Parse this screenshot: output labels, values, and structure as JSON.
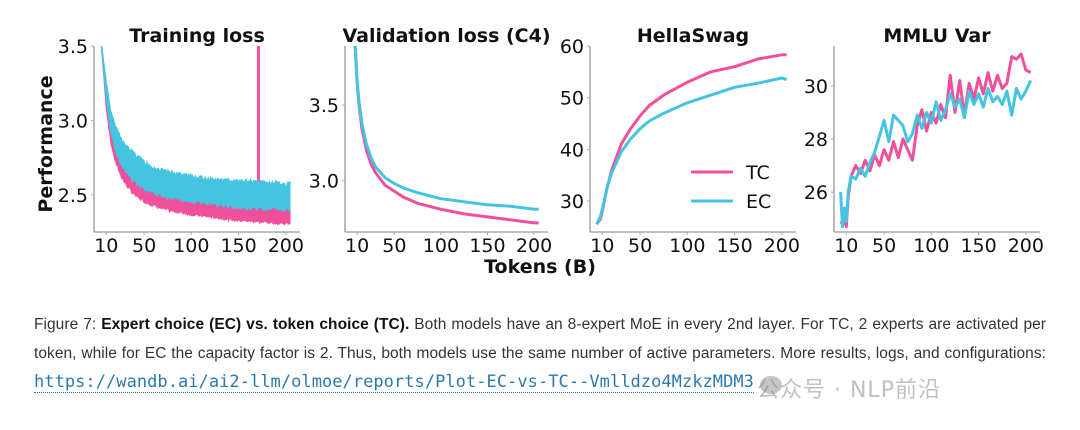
{
  "chart_data": [
    {
      "type": "area",
      "title": "Training loss",
      "xlabel": "",
      "ylabel": "Performance",
      "xlim": [
        -3,
        215
      ],
      "ylim": [
        2.25,
        3.5
      ],
      "xticks": [
        10,
        50,
        100,
        150,
        200
      ],
      "yticks": [
        2.5,
        3.0,
        3.5
      ],
      "ytick_labels": [
        "2.5",
        "3.0",
        "3.5"
      ],
      "grid": false,
      "note": "noisy bands: values are [low, high] envelope of per-step loss",
      "x": [
        5,
        10,
        15,
        20,
        25,
        30,
        40,
        50,
        60,
        75,
        100,
        125,
        150,
        175,
        200,
        205
      ],
      "series": [
        {
          "name": "TC",
          "color": "#f0509a",
          "low": [
            3.5,
            3.1,
            2.85,
            2.72,
            2.64,
            2.58,
            2.5,
            2.46,
            2.43,
            2.4,
            2.37,
            2.35,
            2.33,
            2.32,
            2.31,
            2.31
          ],
          "high": [
            3.5,
            3.2,
            2.98,
            2.86,
            2.78,
            2.72,
            2.64,
            2.59,
            2.55,
            2.51,
            2.47,
            2.45,
            2.43,
            2.42,
            2.41,
            2.41
          ],
          "spike": {
            "x": 171,
            "y": 3.5
          }
        },
        {
          "name": "EC",
          "color": "#44c4e0",
          "low": [
            3.5,
            3.15,
            2.92,
            2.8,
            2.72,
            2.66,
            2.59,
            2.55,
            2.52,
            2.49,
            2.46,
            2.44,
            2.42,
            2.41,
            2.4,
            2.4
          ],
          "high": [
            3.5,
            3.25,
            3.05,
            2.95,
            2.88,
            2.83,
            2.77,
            2.72,
            2.68,
            2.65,
            2.62,
            2.6,
            2.59,
            2.58,
            2.57,
            2.57
          ]
        }
      ]
    },
    {
      "type": "line",
      "title": "Validation loss (C4)",
      "xlabel": "",
      "ylabel": "",
      "xlim": [
        -3,
        215
      ],
      "ylim": [
        2.66,
        3.89
      ],
      "xticks": [
        10,
        50,
        100,
        150,
        200
      ],
      "yticks": [
        3.0,
        3.5
      ],
      "ytick_labels": [
        "3.0",
        "3.5"
      ],
      "grid": false,
      "x": [
        8,
        10,
        12,
        15,
        20,
        25,
        30,
        40,
        50,
        60,
        75,
        100,
        125,
        150,
        175,
        200,
        205
      ],
      "series": [
        {
          "name": "TC",
          "color": "#f0509a",
          "values": [
            3.89,
            3.65,
            3.5,
            3.35,
            3.2,
            3.11,
            3.05,
            2.97,
            2.93,
            2.89,
            2.85,
            2.81,
            2.78,
            2.76,
            2.74,
            2.72,
            2.72
          ]
        },
        {
          "name": "EC",
          "color": "#44c4e0",
          "values": [
            3.89,
            3.66,
            3.52,
            3.38,
            3.24,
            3.15,
            3.09,
            3.02,
            2.98,
            2.95,
            2.92,
            2.88,
            2.86,
            2.84,
            2.83,
            2.81,
            2.81
          ]
        }
      ]
    },
    {
      "type": "line",
      "title": "HellaSwag",
      "xlabel": "",
      "ylabel": "",
      "xlim": [
        -3,
        215
      ],
      "ylim": [
        24,
        60
      ],
      "xticks": [
        10,
        50,
        100,
        150,
        200
      ],
      "yticks": [
        30,
        40,
        50,
        60
      ],
      "ytick_labels": [
        "30",
        "40",
        "50",
        "60"
      ],
      "grid": false,
      "legend": {
        "position": "lower-right",
        "entries": [
          "TC",
          "EC"
        ]
      },
      "x": [
        4,
        8,
        10,
        15,
        20,
        25,
        30,
        40,
        50,
        60,
        75,
        100,
        125,
        150,
        175,
        200,
        205
      ],
      "series": [
        {
          "name": "TC",
          "color": "#f0509a",
          "values": [
            25.5,
            26.5,
            28.0,
            32.5,
            36.0,
            38.5,
            41.0,
            44.0,
            46.5,
            48.5,
            50.5,
            53.0,
            55.0,
            56.0,
            57.5,
            58.3,
            58.3
          ]
        },
        {
          "name": "EC",
          "color": "#44c4e0",
          "values": [
            25.5,
            27.0,
            28.5,
            32.5,
            35.5,
            37.5,
            39.5,
            42.0,
            44.0,
            45.5,
            47.0,
            49.0,
            50.5,
            52.0,
            52.8,
            53.8,
            53.5
          ]
        }
      ]
    },
    {
      "type": "line",
      "title": "MMLU Var",
      "xlabel": "",
      "ylabel": "",
      "xlim": [
        -3,
        215
      ],
      "ylim": [
        24.5,
        31.5
      ],
      "xticks": [
        10,
        50,
        100,
        150,
        200
      ],
      "yticks": [
        26,
        28,
        30
      ],
      "ytick_labels": [
        "26",
        "28",
        "30"
      ],
      "grid": false,
      "x": [
        4,
        6,
        8,
        10,
        12,
        15,
        20,
        25,
        30,
        35,
        40,
        45,
        50,
        55,
        60,
        65,
        70,
        75,
        80,
        85,
        90,
        95,
        100,
        105,
        110,
        115,
        120,
        125,
        130,
        135,
        140,
        145,
        150,
        155,
        160,
        165,
        170,
        175,
        180,
        185,
        190,
        195,
        200,
        205
      ],
      "series": [
        {
          "name": "TC",
          "color": "#f0509a",
          "values": [
            24.9,
            24.8,
            25.0,
            24.7,
            25.8,
            26.6,
            27.0,
            26.7,
            27.2,
            26.8,
            27.4,
            27.0,
            27.6,
            27.2,
            27.9,
            27.3,
            28.0,
            27.6,
            27.2,
            28.5,
            29.1,
            28.3,
            29.0,
            28.6,
            29.3,
            28.8,
            30.4,
            29.0,
            30.2,
            28.9,
            30.1,
            29.5,
            30.3,
            29.7,
            30.5,
            29.8,
            30.4,
            29.9,
            30.1,
            31.1,
            31.0,
            31.2,
            30.6,
            30.5
          ]
        },
        {
          "name": "EC",
          "color": "#44c4e0",
          "values": [
            26.0,
            24.7,
            25.4,
            24.9,
            26.0,
            26.6,
            26.5,
            26.9,
            26.6,
            27.1,
            27.5,
            28.1,
            28.7,
            27.9,
            28.9,
            28.7,
            28.5,
            27.9,
            28.2,
            28.9,
            28.4,
            29.0,
            28.6,
            29.4,
            28.7,
            29.1,
            29.7,
            29.2,
            29.5,
            28.8,
            29.8,
            29.3,
            29.7,
            29.2,
            29.9,
            29.4,
            29.6,
            29.3,
            29.8,
            28.9,
            29.9,
            29.5,
            29.8,
            30.2
          ]
        }
      ]
    }
  ],
  "figure": {
    "shared_xlabel": "Tokens (B)",
    "legend_entries": [
      "TC",
      "EC"
    ]
  },
  "caption": {
    "label": "Figure 7:",
    "bold": "Expert choice (EC) vs. token choice (TC).",
    "text": " Both models have an 8-expert MoE in every 2nd layer. For TC, 2 experts are activated per token, while for EC the capacity factor is 2. Thus, both models use the same number of active parameters. More results, logs, and configurations: ",
    "link": "https://wandb.ai/ai2-llm/olmoe/reports/Plot-EC-vs-TC--Vmlldzo4MzkzMDM3"
  },
  "watermark": "公众号 · NLP前沿"
}
